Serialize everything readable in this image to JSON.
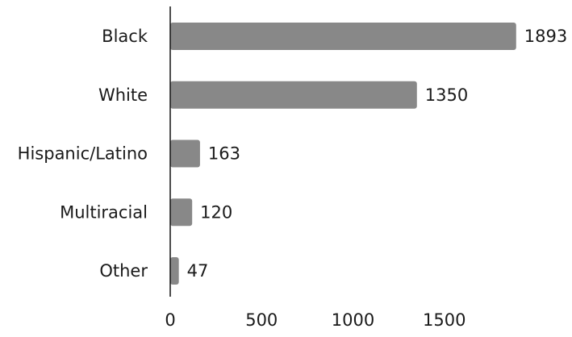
{
  "chart_data": {
    "type": "bar",
    "orientation": "horizontal",
    "categories": [
      "Black",
      "White",
      "Hispanic/Latino",
      "Multiracial",
      "Other"
    ],
    "values": [
      1893,
      1350,
      163,
      120,
      47
    ],
    "value_labels": [
      "1893",
      "1350",
      "163",
      "120",
      "47"
    ],
    "title": "",
    "xlabel": "",
    "ylabel": "",
    "xlim": [
      0,
      1893
    ],
    "xticks": [
      0,
      500,
      1000,
      1500
    ],
    "xtick_labels": [
      "0",
      "500",
      "1000",
      "1500"
    ],
    "grid": false,
    "legend": "none",
    "bar_color": "#888888",
    "axis_color": "#111111"
  }
}
